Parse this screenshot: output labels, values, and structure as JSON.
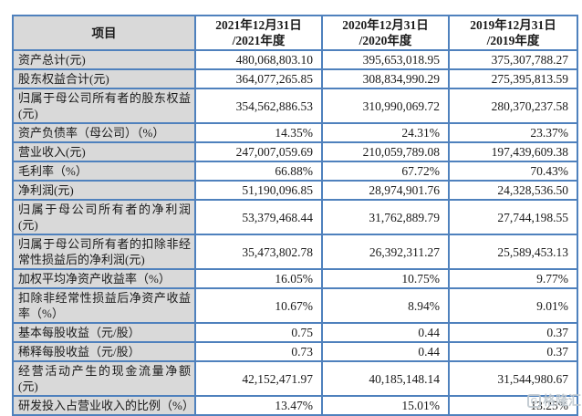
{
  "colors": {
    "border_blue": "#4f81bd",
    "label_column_bg": "#d9d9d9",
    "watermark_gray": "#bfc8cf"
  },
  "table": {
    "headers": [
      "项目",
      "2021年12月31日\n/2021年度",
      "2020年12月31日\n/2020年度",
      "2019年12月31日\n/2019年度"
    ],
    "rows": [
      {
        "label": "资产总计(元)",
        "values": [
          "480,068,803.10",
          "395,653,018.95",
          "375,307,788.27"
        ]
      },
      {
        "label": "股东权益合计(元)",
        "values": [
          "364,077,265.85",
          "308,834,990.29",
          "275,395,813.59"
        ]
      },
      {
        "label": "归属于母公司所有者的股东权益(元)",
        "values": [
          "354,562,886.53",
          "310,990,069.72",
          "280,370,237.58"
        ]
      },
      {
        "label": "资产负债率（母公司）（%）",
        "values": [
          "14.35%",
          "24.31%",
          "23.37%"
        ]
      },
      {
        "label": "营业收入(元)",
        "values": [
          "247,007,059.69",
          "210,059,789.08",
          "197,439,609.38"
        ]
      },
      {
        "label": "毛利率（%）",
        "values": [
          "66.88%",
          "67.72%",
          "70.43%"
        ]
      },
      {
        "label": "净利润(元)",
        "values": [
          "51,190,096.85",
          "28,974,901.76",
          "24,328,536.50"
        ]
      },
      {
        "label": "归属于母公司所有者的净利润(元)",
        "values": [
          "53,379,468.44",
          "31,762,889.79",
          "27,744,198.55"
        ]
      },
      {
        "label": "归属于母公司所有者的扣除非经常性损益后的净利润(元)",
        "values": [
          "35,473,802.78",
          "26,392,311.27",
          "25,589,453.13"
        ]
      },
      {
        "label": "加权平均净资产收益率（%）",
        "values": [
          "16.05%",
          "10.75%",
          "9.77%"
        ]
      },
      {
        "label": "扣除非经常性损益后净资产收益率（%）",
        "values": [
          "10.67%",
          "8.94%",
          "9.01%"
        ]
      },
      {
        "label": "基本每股收益（元/股）",
        "values": [
          "0.75",
          "0.44",
          "0.37"
        ]
      },
      {
        "label": "稀释每股收益（元/股）",
        "values": [
          "0.73",
          "0.44",
          "0.37"
        ]
      },
      {
        "label": "经营活动产生的现金流量净额(元)",
        "values": [
          "42,152,471.97",
          "40,185,148.14",
          "31,544,980.67"
        ]
      },
      {
        "label": "研发投入占营业收入的比例（%）",
        "values": [
          "13.47%",
          "15.01%",
          "13.25%"
        ]
      }
    ]
  },
  "watermark": {
    "logo_letter": "G",
    "text": "格隆汇"
  }
}
